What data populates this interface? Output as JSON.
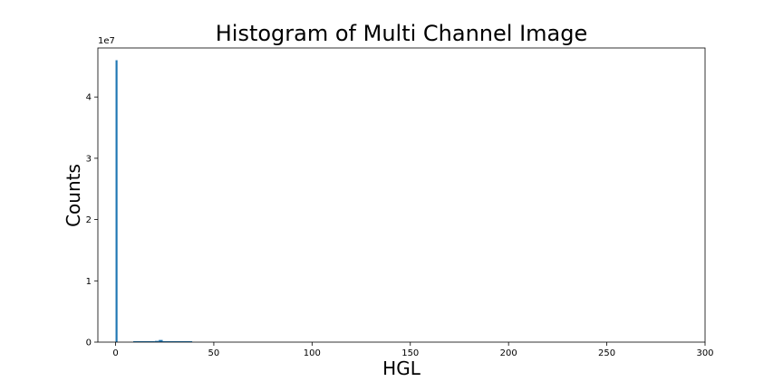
{
  "chart_data": {
    "type": "bar",
    "title": "Histogram of Multi Channel Image",
    "xlabel": "HGL",
    "ylabel": "Counts",
    "y_offset_label": "1e7",
    "xlim": [
      -9,
      300
    ],
    "ylim": [
      0,
      4.8
    ],
    "x_ticks": [
      0,
      50,
      100,
      150,
      200,
      250,
      300
    ],
    "y_ticks": [
      0,
      1,
      2,
      3,
      4
    ],
    "grid": false,
    "bar_color": "#1f77b4",
    "bins": [
      {
        "x0": 0,
        "x1": 1,
        "value": 4.6
      },
      {
        "x0": 9,
        "x1": 20,
        "value": 0.015
      },
      {
        "x0": 20,
        "x1": 22,
        "value": 0.02
      },
      {
        "x0": 22,
        "x1": 24,
        "value": 0.035
      },
      {
        "x0": 24,
        "x1": 39,
        "value": 0.015
      }
    ]
  }
}
